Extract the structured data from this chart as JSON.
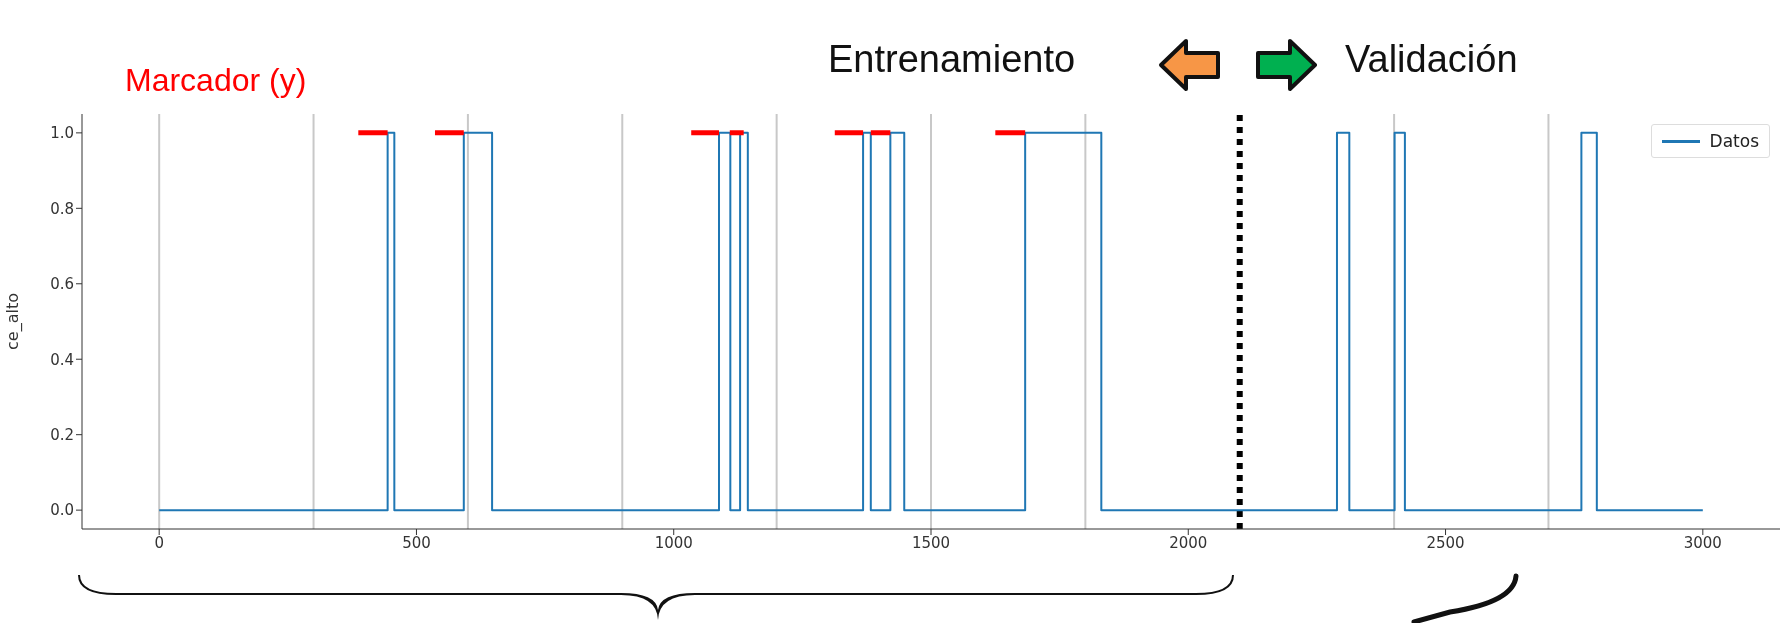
{
  "chart_data": {
    "type": "step",
    "ylabel": "ce_alto",
    "xlim": [
      -150,
      3150
    ],
    "ylim": [
      -0.05,
      1.05
    ],
    "xticks": [
      0,
      500,
      1000,
      1500,
      2000,
      2500,
      3000
    ],
    "yticks": [
      {
        "value": 0,
        "label": "0.0"
      },
      {
        "value": 0.2,
        "label": "0.2"
      },
      {
        "value": 0.4,
        "label": "0.4"
      },
      {
        "value": 0.6,
        "label": "0.6"
      },
      {
        "value": 0.8,
        "label": "0.8"
      },
      {
        "value": 1,
        "label": "1.0"
      }
    ],
    "legend": "top right",
    "marker": "none",
    "series": [
      {
        "name": "Datos",
        "color": "#1f77b4",
        "x": [
          0,
          444,
          457,
          592,
          647,
          1088,
          1110,
          1129,
          1144,
          1368,
          1383,
          1421,
          1448,
          1683,
          1831,
          2289,
          2313,
          2401,
          2421,
          2764,
          2794,
          3000
        ],
        "values": [
          0,
          1,
          0,
          1,
          0,
          1,
          0,
          1,
          0,
          1,
          0,
          1,
          0,
          1,
          0,
          1,
          0,
          1,
          0,
          1,
          0,
          0
        ]
      },
      {
        "name": "Marcador (y)",
        "type": "line",
        "color": "#ff0000",
        "x": [
          387,
          444,
          null,
          536,
          592,
          null,
          1034,
          1088,
          null,
          1109,
          1136,
          null,
          1313,
          1368,
          null,
          1383,
          1421,
          null,
          1625,
          1683
        ],
        "values": [
          1,
          1,
          null,
          1,
          1,
          null,
          1,
          1,
          null,
          1,
          1,
          null,
          1,
          1,
          null,
          1,
          1,
          null,
          1,
          1
        ]
      }
    ],
    "ref_lines": [
      {
        "axis": "x",
        "value": 0,
        "color": "#c8c8c8"
      },
      {
        "axis": "x",
        "value": 300,
        "color": "#c8c8c8"
      },
      {
        "axis": "x",
        "value": 600,
        "color": "#c8c8c8"
      },
      {
        "axis": "x",
        "value": 900,
        "color": "#c8c8c8"
      },
      {
        "axis": "x",
        "value": 1200,
        "color": "#c8c8c8"
      },
      {
        "axis": "x",
        "value": 1500,
        "color": "#c8c8c8"
      },
      {
        "axis": "x",
        "value": 1800,
        "color": "#c8c8c8"
      },
      {
        "axis": "x",
        "value": 2400,
        "color": "#c8c8c8"
      },
      {
        "axis": "x",
        "value": 2700,
        "color": "#c8c8c8"
      },
      {
        "axis": "x",
        "value": 2100,
        "color": "#000000",
        "line_style": "dotted"
      }
    ],
    "annotations": [
      "Entrenamiento",
      "Validación"
    ]
  }
}
